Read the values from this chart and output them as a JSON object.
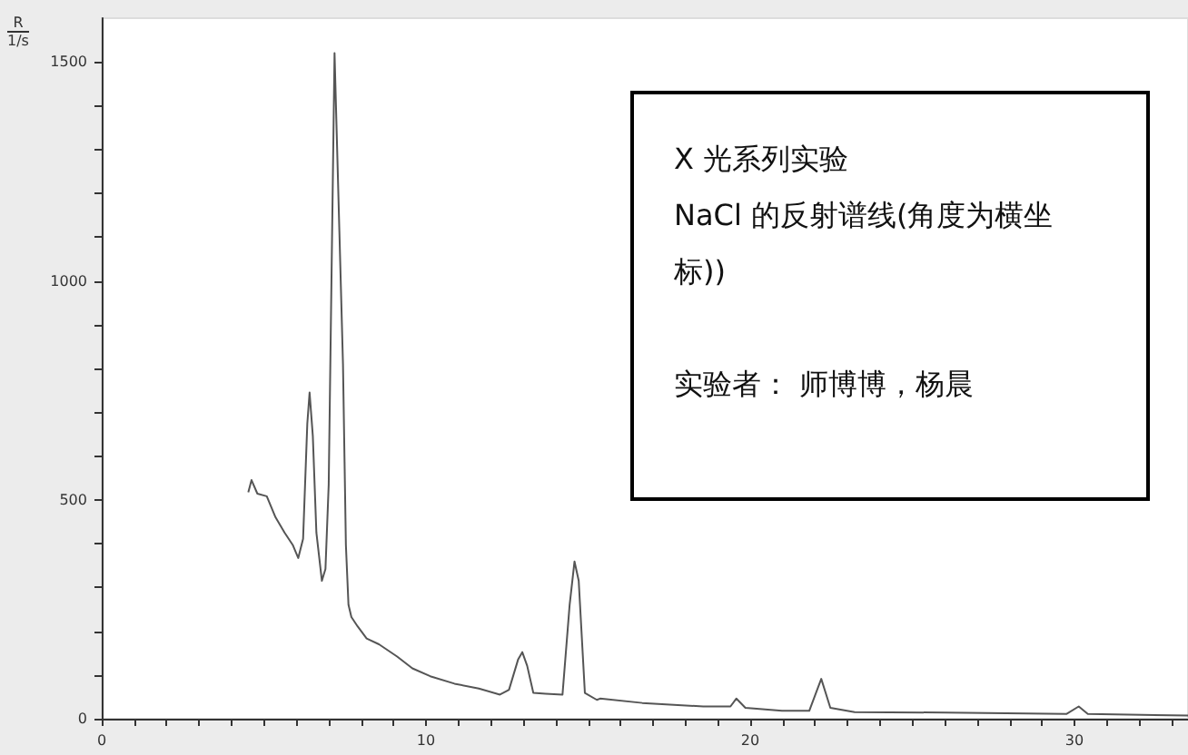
{
  "chart_data": {
    "type": "line",
    "ylabel": "R\n1/s",
    "annotations": [
      "X 光系列实验",
      "NaCl  的反射谱线(角度为横坐标))",
      "实验者：  师博博，杨晨"
    ],
    "xlim": [
      0,
      33.5
    ],
    "ylim": [
      0,
      1600
    ],
    "xticks": [
      0,
      {
        "value": 1,
        "label": null
      },
      {
        "value": 2,
        "label": null
      },
      {
        "value": 3,
        "label": null
      },
      {
        "value": 4,
        "label": null
      },
      {
        "value": 5,
        "label": null
      },
      {
        "value": 6,
        "label": null
      },
      {
        "value": 7,
        "label": null
      },
      {
        "value": 8,
        "label": null
      },
      {
        "value": 9,
        "label": null
      },
      10,
      {
        "value": 11,
        "label": null
      },
      {
        "value": 12,
        "label": null
      },
      {
        "value": 13,
        "label": null
      },
      {
        "value": 14,
        "label": null
      },
      {
        "value": 15,
        "label": null
      },
      {
        "value": 16,
        "label": null
      },
      {
        "value": 17,
        "label": null
      },
      {
        "value": 18,
        "label": null
      },
      {
        "value": 19,
        "label": null
      },
      20,
      {
        "value": 21,
        "label": null
      },
      {
        "value": 22,
        "label": null
      },
      {
        "value": 23,
        "label": null
      },
      {
        "value": 24,
        "label": null
      },
      {
        "value": 25,
        "label": null
      },
      {
        "value": 26,
        "label": null
      },
      {
        "value": 27,
        "label": null
      },
      {
        "value": 28,
        "label": null
      },
      {
        "value": 29,
        "label": null
      },
      30,
      {
        "value": 31,
        "label": null
      },
      {
        "value": 32,
        "label": null
      },
      {
        "value": 33,
        "label": null
      }
    ],
    "yticks": [
      0,
      {
        "value": 100,
        "label": null
      },
      {
        "value": 200,
        "label": null
      },
      {
        "value": 300,
        "label": null
      },
      {
        "value": 400,
        "label": null
      },
      500,
      {
        "value": 600,
        "label": null
      },
      {
        "value": 700,
        "label": null
      },
      {
        "value": 800,
        "label": null
      },
      {
        "value": 900,
        "label": null
      },
      1000,
      {
        "value": 1100,
        "label": null
      },
      {
        "value": 1200,
        "label": null
      },
      {
        "value": 1300,
        "label": null
      },
      {
        "value": 1400,
        "label": null
      },
      1500
    ],
    "grid": false,
    "marker": "none",
    "line_style": "solid",
    "series": [
      {
        "color": "#555555",
        "x": [
          4.52,
          4.62,
          4.8,
          5.09,
          5.36,
          5.64,
          5.89,
          6.06,
          6.21,
          6.34,
          6.41,
          6.51,
          6.62,
          6.79,
          6.9,
          7.0,
          7.18,
          7.44,
          7.53,
          7.61,
          7.7,
          7.89,
          8.17,
          8.55,
          9.11,
          9.58,
          10.13,
          10.88,
          11.63,
          12.28,
          12.56,
          12.84,
          12.97,
          13.12,
          13.31,
          13.69,
          14.21,
          14.43,
          14.58,
          14.71,
          14.9,
          15.27,
          15.37,
          16.67,
          18.55,
          19.39,
          19.57,
          19.85,
          20.98,
          21.82,
          22.19,
          22.47,
          23.22,
          26.02,
          29.76,
          30.13,
          30.41,
          33.5
        ],
        "values": [
          517,
          545,
          514,
          508,
          460,
          425,
          397,
          367,
          411,
          674,
          745,
          646,
          425,
          315,
          342,
          535,
          1520,
          811,
          397,
          260,
          232,
          211,
          183,
          170,
          142,
          115,
          97,
          80,
          69,
          55,
          66,
          135,
          152,
          121,
          59,
          57,
          55,
          260,
          359,
          315,
          59,
          43,
          46,
          36,
          28,
          28,
          46,
          25,
          18,
          18,
          91,
          25,
          15,
          14,
          11,
          28,
          11,
          7
        ]
      }
    ]
  }
}
